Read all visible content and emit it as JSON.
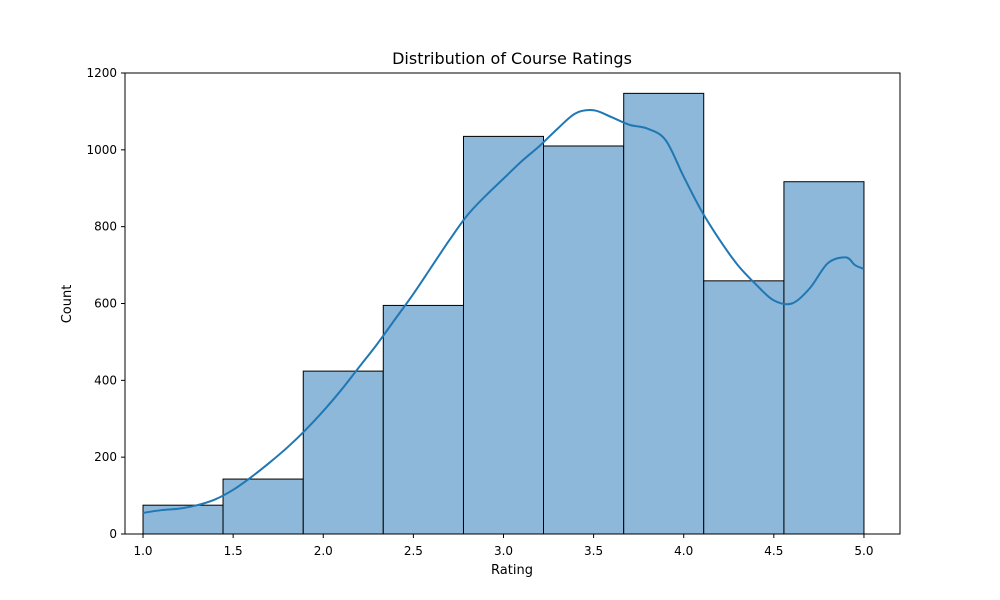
{
  "chart_data": {
    "type": "bar",
    "title": "Distribution of Course Ratings",
    "xlabel": "Rating",
    "ylabel": "Count",
    "xlim": [
      0.9,
      5.2
    ],
    "ylim": [
      0,
      1200
    ],
    "xticks": [
      "1.0",
      "1.5",
      "2.0",
      "2.5",
      "3.0",
      "3.5",
      "4.0",
      "4.5",
      "5.0"
    ],
    "yticks": [
      "0",
      "200",
      "400",
      "600",
      "800",
      "1000",
      "1200"
    ],
    "bins": [
      {
        "start": 1.0,
        "end": 1.444,
        "count": 75
      },
      {
        "start": 1.444,
        "end": 1.889,
        "count": 143
      },
      {
        "start": 1.889,
        "end": 2.333,
        "count": 424
      },
      {
        "start": 2.333,
        "end": 2.778,
        "count": 595
      },
      {
        "start": 2.778,
        "end": 3.222,
        "count": 1035
      },
      {
        "start": 3.222,
        "end": 3.667,
        "count": 1010
      },
      {
        "start": 3.667,
        "end": 4.111,
        "count": 1147
      },
      {
        "start": 4.111,
        "end": 4.556,
        "count": 659
      },
      {
        "start": 4.556,
        "end": 5.0,
        "count": 917
      }
    ],
    "kde": {
      "x": [
        1.0,
        1.1,
        1.2,
        1.3,
        1.4,
        1.5,
        1.6,
        1.7,
        1.8,
        1.9,
        2.0,
        2.1,
        2.2,
        2.3,
        2.4,
        2.5,
        2.6,
        2.7,
        2.8,
        2.9,
        3.0,
        3.1,
        3.2,
        3.3,
        3.4,
        3.5,
        3.6,
        3.7,
        3.8,
        3.9,
        4.0,
        4.1,
        4.2,
        4.3,
        4.4,
        4.5,
        4.6,
        4.7,
        4.8,
        4.9,
        4.95,
        5.0
      ],
      "y": [
        55,
        62,
        66,
        75,
        90,
        115,
        148,
        185,
        225,
        270,
        320,
        375,
        435,
        495,
        560,
        625,
        695,
        765,
        830,
        880,
        925,
        970,
        1010,
        1055,
        1095,
        1103,
        1085,
        1065,
        1055,
        1025,
        930,
        840,
        765,
        700,
        650,
        608,
        600,
        640,
        705,
        720,
        700,
        690
      ]
    },
    "bar_color": "#8db8d9",
    "line_color": "#1f77b4",
    "grid": false,
    "legend": "none"
  }
}
